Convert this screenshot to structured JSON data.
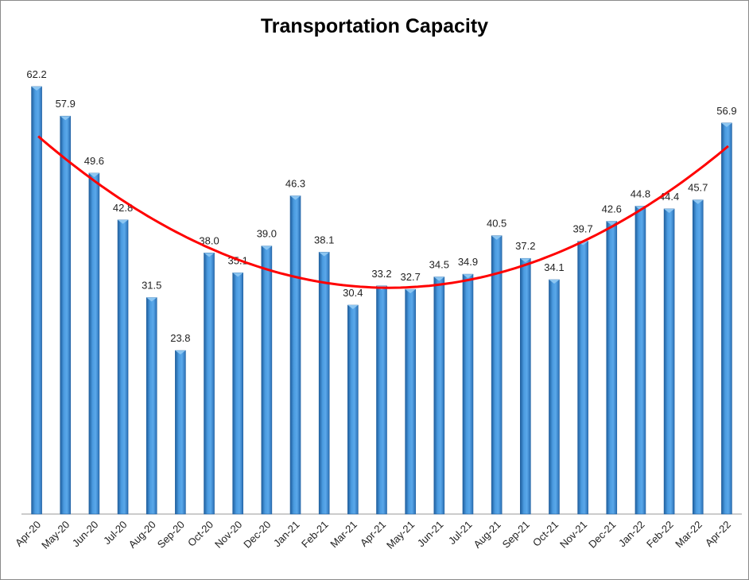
{
  "chart_data": {
    "type": "bar",
    "title": "Transportation Capacity",
    "xlabel": "",
    "ylabel": "",
    "ylim": [
      0,
      62.2
    ],
    "grid": false,
    "legend": "none",
    "categories": [
      "Apr-20",
      "May-20",
      "Jun-20",
      "Jul-20",
      "Aug-20",
      "Sep-20",
      "Oct-20",
      "Nov-20",
      "Dec-20",
      "Jan-21",
      "Feb-21",
      "Mar-21",
      "Apr-21",
      "May-21",
      "Jun-21",
      "Jul-21",
      "Aug-21",
      "Sep-21",
      "Oct-21",
      "Nov-21",
      "Dec-21",
      "Jan-22",
      "Feb-22",
      "Mar-22",
      "Apr-22"
    ],
    "values": [
      62.2,
      57.9,
      49.6,
      42.8,
      31.5,
      23.8,
      38.0,
      35.1,
      39.0,
      46.3,
      38.1,
      30.4,
      33.2,
      32.7,
      34.5,
      34.9,
      40.5,
      37.2,
      34.1,
      39.7,
      42.6,
      44.8,
      44.4,
      45.7,
      56.9
    ],
    "data_labels": [
      "62.2",
      "57.9",
      "49.6",
      "42.8",
      "31.5",
      "23.8",
      "38.0",
      "35.1",
      "39.0",
      "46.3",
      "38.1",
      "30.4",
      "33.2",
      "32.7",
      "34.5",
      "34.9",
      "40.5",
      "37.2",
      "34.1",
      "39.7",
      "42.6",
      "44.8",
      "44.4",
      "45.7",
      "56.9"
    ],
    "trendline": {
      "type": "polynomial",
      "order": 2,
      "color": "#ff0000"
    },
    "colors": {
      "bar": "#3f8fd6",
      "bar_dark": "#1f5f9e",
      "bar_light": "#8cc6f2",
      "trend": "#ff0000"
    }
  }
}
